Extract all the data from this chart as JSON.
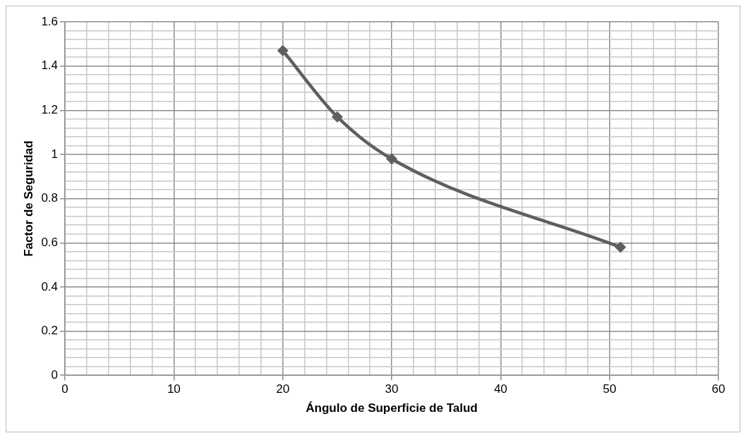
{
  "chart_data": {
    "type": "line",
    "xlabel": "Ángulo de Superficie de Talud",
    "ylabel": "Factor de Seguridad",
    "x": [
      20,
      25,
      30,
      51
    ],
    "series": [
      {
        "color": "#5f5f5f",
        "values": [
          1.47,
          1.17,
          0.98,
          0.58
        ]
      }
    ],
    "xlim": [
      0,
      60
    ],
    "xticks": [
      0,
      {
        "value": 2,
        "label": null
      },
      {
        "value": 4,
        "label": null
      },
      {
        "value": 6,
        "label": null
      },
      {
        "value": 8,
        "label": null
      },
      10,
      {
        "value": 12,
        "label": null
      },
      {
        "value": 14,
        "label": null
      },
      {
        "value": 16,
        "label": null
      },
      {
        "value": 18,
        "label": null
      },
      20,
      {
        "value": 22,
        "label": null
      },
      {
        "value": 24,
        "label": null
      },
      {
        "value": 26,
        "label": null
      },
      {
        "value": 28,
        "label": null
      },
      30,
      {
        "value": 32,
        "label": null
      },
      {
        "value": 34,
        "label": null
      },
      {
        "value": 36,
        "label": null
      },
      {
        "value": 38,
        "label": null
      },
      40,
      {
        "value": 42,
        "label": null
      },
      {
        "value": 44,
        "label": null
      },
      {
        "value": 46,
        "label": null
      },
      {
        "value": 48,
        "label": null
      },
      50,
      {
        "value": 52,
        "label": null
      },
      {
        "value": 54,
        "label": null
      },
      {
        "value": 56,
        "label": null
      },
      {
        "value": 58,
        "label": null
      },
      60
    ],
    "ylim": [
      0,
      1.6
    ],
    "yticks": [
      0,
      {
        "value": 0.04,
        "label": null
      },
      {
        "value": 0.08,
        "label": null
      },
      {
        "value": 0.12,
        "label": null
      },
      {
        "value": 0.16,
        "label": null
      },
      0.2,
      {
        "value": 0.24,
        "label": null
      },
      {
        "value": 0.28,
        "label": null
      },
      {
        "value": 0.32,
        "label": null
      },
      {
        "value": 0.36,
        "label": null
      },
      0.4,
      {
        "value": 0.44,
        "label": null
      },
      {
        "value": 0.48,
        "label": null
      },
      {
        "value": 0.52,
        "label": null
      },
      {
        "value": 0.56,
        "label": null
      },
      0.6,
      {
        "value": 0.64,
        "label": null
      },
      {
        "value": 0.68,
        "label": null
      },
      {
        "value": 0.72,
        "label": null
      },
      {
        "value": 0.76,
        "label": null
      },
      0.8,
      {
        "value": 0.84,
        "label": null
      },
      {
        "value": 0.88,
        "label": null
      },
      {
        "value": 0.92,
        "label": null
      },
      {
        "value": 0.96,
        "label": null
      },
      1,
      {
        "value": 1.04,
        "label": null
      },
      {
        "value": 1.08,
        "label": null
      },
      {
        "value": 1.12,
        "label": null
      },
      {
        "value": 1.16,
        "label": null
      },
      1.2,
      {
        "value": 1.24,
        "label": null
      },
      {
        "value": 1.28,
        "label": null
      },
      {
        "value": 1.32,
        "label": null
      },
      {
        "value": 1.36,
        "label": null
      },
      1.4,
      {
        "value": 1.44,
        "label": null
      },
      {
        "value": 1.48,
        "label": null
      },
      {
        "value": 1.52,
        "label": null
      },
      {
        "value": 1.56,
        "label": null
      },
      1.6
    ],
    "grid": true,
    "legend": false,
    "marker": "diamond",
    "line_style": "solid"
  }
}
